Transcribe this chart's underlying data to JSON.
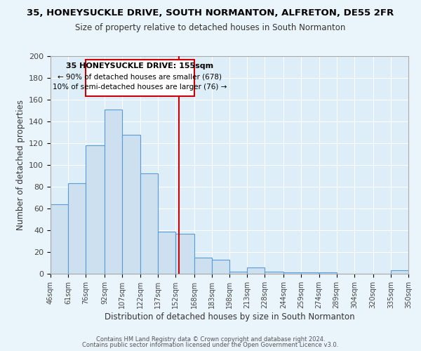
{
  "title": "35, HONEYSUCKLE DRIVE, SOUTH NORMANTON, ALFRETON, DE55 2FR",
  "subtitle": "Size of property relative to detached houses in South Normanton",
  "xlabel": "Distribution of detached houses by size in South Normanton",
  "ylabel": "Number of detached properties",
  "bar_color": "#cce0f0",
  "bar_edge_color": "#5b9bd5",
  "background_color": "#ddeef8",
  "fig_background_color": "#eaf4fb",
  "grid_color": "#ffffff",
  "vline_x": 155,
  "vline_color": "#cc0000",
  "bins": [
    46,
    61,
    76,
    92,
    107,
    122,
    137,
    152,
    168,
    183,
    198,
    213,
    228,
    244,
    259,
    274,
    289,
    304,
    320,
    335,
    350
  ],
  "bin_labels": [
    "46sqm",
    "61sqm",
    "76sqm",
    "92sqm",
    "107sqm",
    "122sqm",
    "137sqm",
    "152sqm",
    "168sqm",
    "183sqm",
    "198sqm",
    "213sqm",
    "228sqm",
    "244sqm",
    "259sqm",
    "274sqm",
    "289sqm",
    "304sqm",
    "320sqm",
    "335sqm",
    "350sqm"
  ],
  "values": [
    64,
    83,
    118,
    151,
    128,
    92,
    39,
    37,
    15,
    13,
    2,
    6,
    2,
    1,
    1,
    1,
    0,
    0,
    0,
    3
  ],
  "ylim": [
    0,
    200
  ],
  "yticks": [
    0,
    20,
    40,
    60,
    80,
    100,
    120,
    140,
    160,
    180,
    200
  ],
  "annotation_title": "35 HONEYSUCKLE DRIVE: 155sqm",
  "annotation_line1": "← 90% of detached houses are smaller (678)",
  "annotation_line2": "10% of semi-detached houses are larger (76) →",
  "footer1": "Contains HM Land Registry data © Crown copyright and database right 2024.",
  "footer2": "Contains public sector information licensed under the Open Government Licence v3.0."
}
